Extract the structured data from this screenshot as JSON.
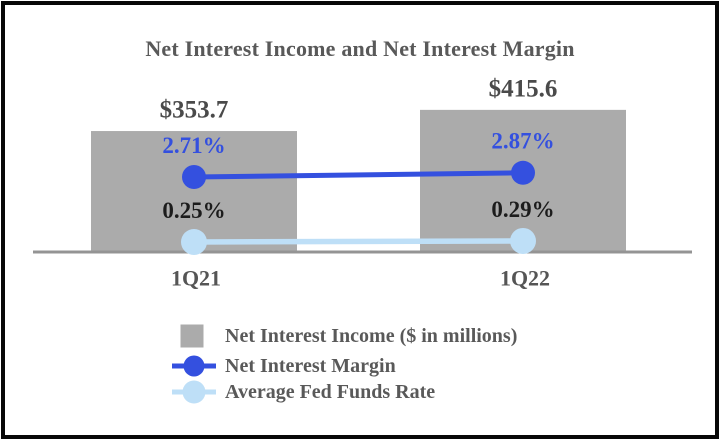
{
  "chart_data": {
    "type": "bar",
    "title": "Net Interest Income and Net Interest Margin",
    "categories": [
      "1Q21",
      "1Q22"
    ],
    "series": [
      {
        "name": "Net Interest Income ($ in millions)",
        "type": "bar",
        "values": [
          353.7,
          415.6
        ],
        "value_labels": [
          "$353.7",
          "$415.6"
        ],
        "color": "#ABABAB",
        "label_color": "#4A4A4A"
      },
      {
        "name": "Net Interest Margin",
        "type": "line",
        "values": [
          2.71,
          2.87
        ],
        "value_labels": [
          "2.71%",
          "2.87%"
        ],
        "color": "#3450DF",
        "label_color": "#3450DF"
      },
      {
        "name": "Average Fed Funds Rate",
        "type": "line",
        "values": [
          0.25,
          0.29
        ],
        "value_labels": [
          "0.25%",
          "0.29%"
        ],
        "color": "#BEDFF7",
        "label_color": "#1C1C1C"
      }
    ],
    "grid": false,
    "y_axis_visible": false,
    "legend_position": "bottom-left"
  },
  "colors": {
    "background": "#FFFFFF",
    "border": "#070707",
    "axis_line": "#949494",
    "title_text": "#595959",
    "category_text": "#555555",
    "legend_text": "#595959"
  }
}
